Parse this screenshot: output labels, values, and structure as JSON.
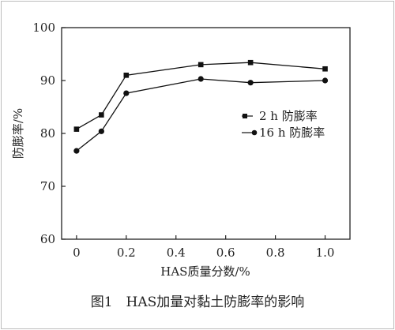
{
  "chart_data": {
    "type": "line",
    "xlabel": "HAS质量分数/%",
    "ylabel": "防膨率/%",
    "xlim": [
      -0.06,
      1.1
    ],
    "ylim": [
      60,
      100
    ],
    "xticks": [
      0,
      0.2,
      0.4,
      0.6,
      0.8,
      1.0
    ],
    "xtick_labels": [
      "0",
      "0.2",
      "0.4",
      "0.6",
      "0.8",
      "1.0"
    ],
    "yticks": [
      60,
      70,
      80,
      90,
      100
    ],
    "ytick_labels": [
      "60",
      "70",
      "80",
      "90",
      "100"
    ],
    "grid": false,
    "legend_position": "right",
    "caption": "图1　HAS加量对黏土防膨率的影响",
    "series": [
      {
        "name": "2 h 防膨率",
        "marker": "square",
        "color": "#111111",
        "x": [
          0,
          0.1,
          0.2,
          0.5,
          0.7,
          1.0
        ],
        "y": [
          80.8,
          83.5,
          91.0,
          93.0,
          93.4,
          92.2
        ]
      },
      {
        "name": "16 h 防膨率",
        "marker": "circle",
        "color": "#111111",
        "x": [
          0,
          0.1,
          0.2,
          0.5,
          0.7,
          1.0
        ],
        "y": [
          76.7,
          80.4,
          87.6,
          90.3,
          89.6,
          90.0
        ]
      }
    ]
  }
}
